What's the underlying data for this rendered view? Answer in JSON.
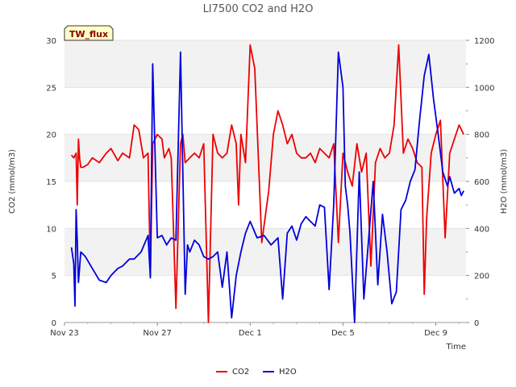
{
  "chart_data": {
    "type": "line",
    "title": "LI7500 CO2 and H2O",
    "badge": "TW_flux",
    "xlabel": "Time",
    "ylabel_left": "CO2 (mmol/m3)",
    "ylabel_right": "H2O (mmol/m3)",
    "x_unit": "days since Nov 23",
    "xlim": [
      0,
      17.3
    ],
    "ylim_left": [
      0,
      30
    ],
    "ylim_right": [
      0,
      1200
    ],
    "x_ticks": [
      {
        "x": 0,
        "label": "Nov 23"
      },
      {
        "x": 4,
        "label": "Nov 27"
      },
      {
        "x": 8,
        "label": "Dec 1"
      },
      {
        "x": 12,
        "label": "Dec 5"
      },
      {
        "x": 16,
        "label": "Dec 9"
      }
    ],
    "y_ticks_left": [
      0,
      5,
      10,
      15,
      20,
      25,
      30
    ],
    "y_ticks_right": [
      0,
      200,
      400,
      600,
      800,
      1000,
      1200
    ],
    "grid_bands": [
      [
        5,
        10
      ],
      [
        15,
        20
      ],
      [
        25,
        30
      ]
    ],
    "legend": {
      "position": "bottom-center"
    },
    "series": [
      {
        "name": "CO2",
        "axis": "left",
        "color": "#ee0000",
        "x": [
          0.3,
          0.4,
          0.5,
          0.55,
          0.6,
          0.65,
          0.7,
          0.8,
          1.0,
          1.2,
          1.5,
          1.8,
          2.0,
          2.3,
          2.5,
          2.8,
          3.0,
          3.2,
          3.4,
          3.6,
          3.7,
          3.8,
          4.0,
          4.2,
          4.3,
          4.4,
          4.5,
          4.6,
          4.8,
          5.0,
          5.1,
          5.2,
          5.4,
          5.6,
          5.8,
          6.0,
          6.2,
          6.4,
          6.6,
          6.8,
          7.0,
          7.2,
          7.4,
          7.5,
          7.6,
          7.8,
          8.0,
          8.2,
          8.5,
          8.8,
          9.0,
          9.2,
          9.4,
          9.6,
          9.8,
          10.0,
          10.2,
          10.4,
          10.6,
          10.8,
          11.0,
          11.2,
          11.4,
          11.6,
          11.8,
          12.0,
          12.2,
          12.4,
          12.6,
          12.8,
          13.0,
          13.2,
          13.4,
          13.6,
          13.8,
          14.0,
          14.2,
          14.4,
          14.6,
          14.8,
          15.0,
          15.2,
          15.4,
          15.5,
          15.6,
          15.8,
          16.0,
          16.2,
          16.4,
          16.6,
          16.8,
          17.0,
          17.2
        ],
        "values": [
          17.8,
          17.5,
          18.0,
          12.5,
          19.5,
          17.5,
          16.5,
          16.5,
          16.8,
          17.5,
          17.0,
          18.0,
          18.5,
          17.2,
          18.0,
          17.5,
          21.0,
          20.5,
          17.5,
          18.0,
          5.0,
          19.0,
          20.0,
          19.5,
          17.5,
          18.0,
          18.5,
          17.5,
          1.5,
          19.0,
          20.0,
          17.0,
          17.5,
          18.0,
          17.5,
          19.0,
          0.0,
          20.0,
          18.0,
          17.5,
          18.0,
          21.0,
          19.0,
          12.5,
          20.0,
          17.0,
          29.5,
          27.0,
          8.5,
          14.0,
          20.0,
          22.5,
          21.0,
          19.0,
          20.0,
          18.0,
          17.5,
          17.5,
          18.0,
          17.0,
          18.5,
          18.0,
          17.5,
          19.0,
          8.5,
          18.0,
          16.0,
          14.5,
          19.0,
          16.0,
          18.0,
          6.0,
          17.0,
          18.5,
          17.5,
          18.0,
          21.0,
          29.5,
          18.0,
          19.5,
          18.5,
          17.0,
          16.5,
          3.0,
          11.0,
          18.0,
          20.0,
          21.5,
          9.0,
          18.0,
          19.5,
          21.0,
          20.0
        ]
      },
      {
        "name": "H2O",
        "axis": "right",
        "color": "#0000dd",
        "x": [
          0.3,
          0.4,
          0.45,
          0.5,
          0.55,
          0.6,
          0.7,
          0.9,
          1.2,
          1.5,
          1.8,
          2.0,
          2.3,
          2.5,
          2.8,
          3.0,
          3.3,
          3.6,
          3.7,
          3.8,
          4.0,
          4.2,
          4.4,
          4.6,
          4.8,
          5.0,
          5.2,
          5.3,
          5.4,
          5.6,
          5.8,
          6.0,
          6.2,
          6.4,
          6.6,
          6.8,
          7.0,
          7.2,
          7.4,
          7.6,
          7.8,
          8.0,
          8.3,
          8.6,
          8.9,
          9.2,
          9.4,
          9.6,
          9.8,
          10.0,
          10.2,
          10.4,
          10.6,
          10.8,
          11.0,
          11.2,
          11.4,
          11.6,
          11.8,
          12.0,
          12.1,
          12.2,
          12.3,
          12.5,
          12.7,
          12.9,
          13.1,
          13.3,
          13.5,
          13.7,
          13.9,
          14.1,
          14.3,
          14.5,
          14.7,
          14.9,
          15.1,
          15.3,
          15.5,
          15.7,
          15.9,
          16.1,
          16.3,
          16.5,
          16.6,
          16.8,
          17.0,
          17.1,
          17.2
        ],
        "values": [
          320,
          250,
          70,
          480,
          350,
          170,
          300,
          280,
          230,
          180,
          170,
          200,
          230,
          240,
          270,
          270,
          300,
          370,
          190,
          1100,
          360,
          370,
          330,
          360,
          350,
          1150,
          120,
          330,
          300,
          350,
          330,
          280,
          270,
          280,
          300,
          150,
          300,
          20,
          200,
          300,
          380,
          430,
          360,
          370,
          330,
          360,
          100,
          380,
          410,
          350,
          420,
          450,
          430,
          410,
          500,
          490,
          140,
          500,
          1150,
          1000,
          580,
          500,
          380,
          0,
          640,
          100,
          350,
          600,
          160,
          460,
          300,
          80,
          130,
          480,
          520,
          600,
          650,
          860,
          1050,
          1140,
          950,
          800,
          640,
          580,
          620,
          550,
          570,
          540,
          560
        ]
      }
    ]
  }
}
